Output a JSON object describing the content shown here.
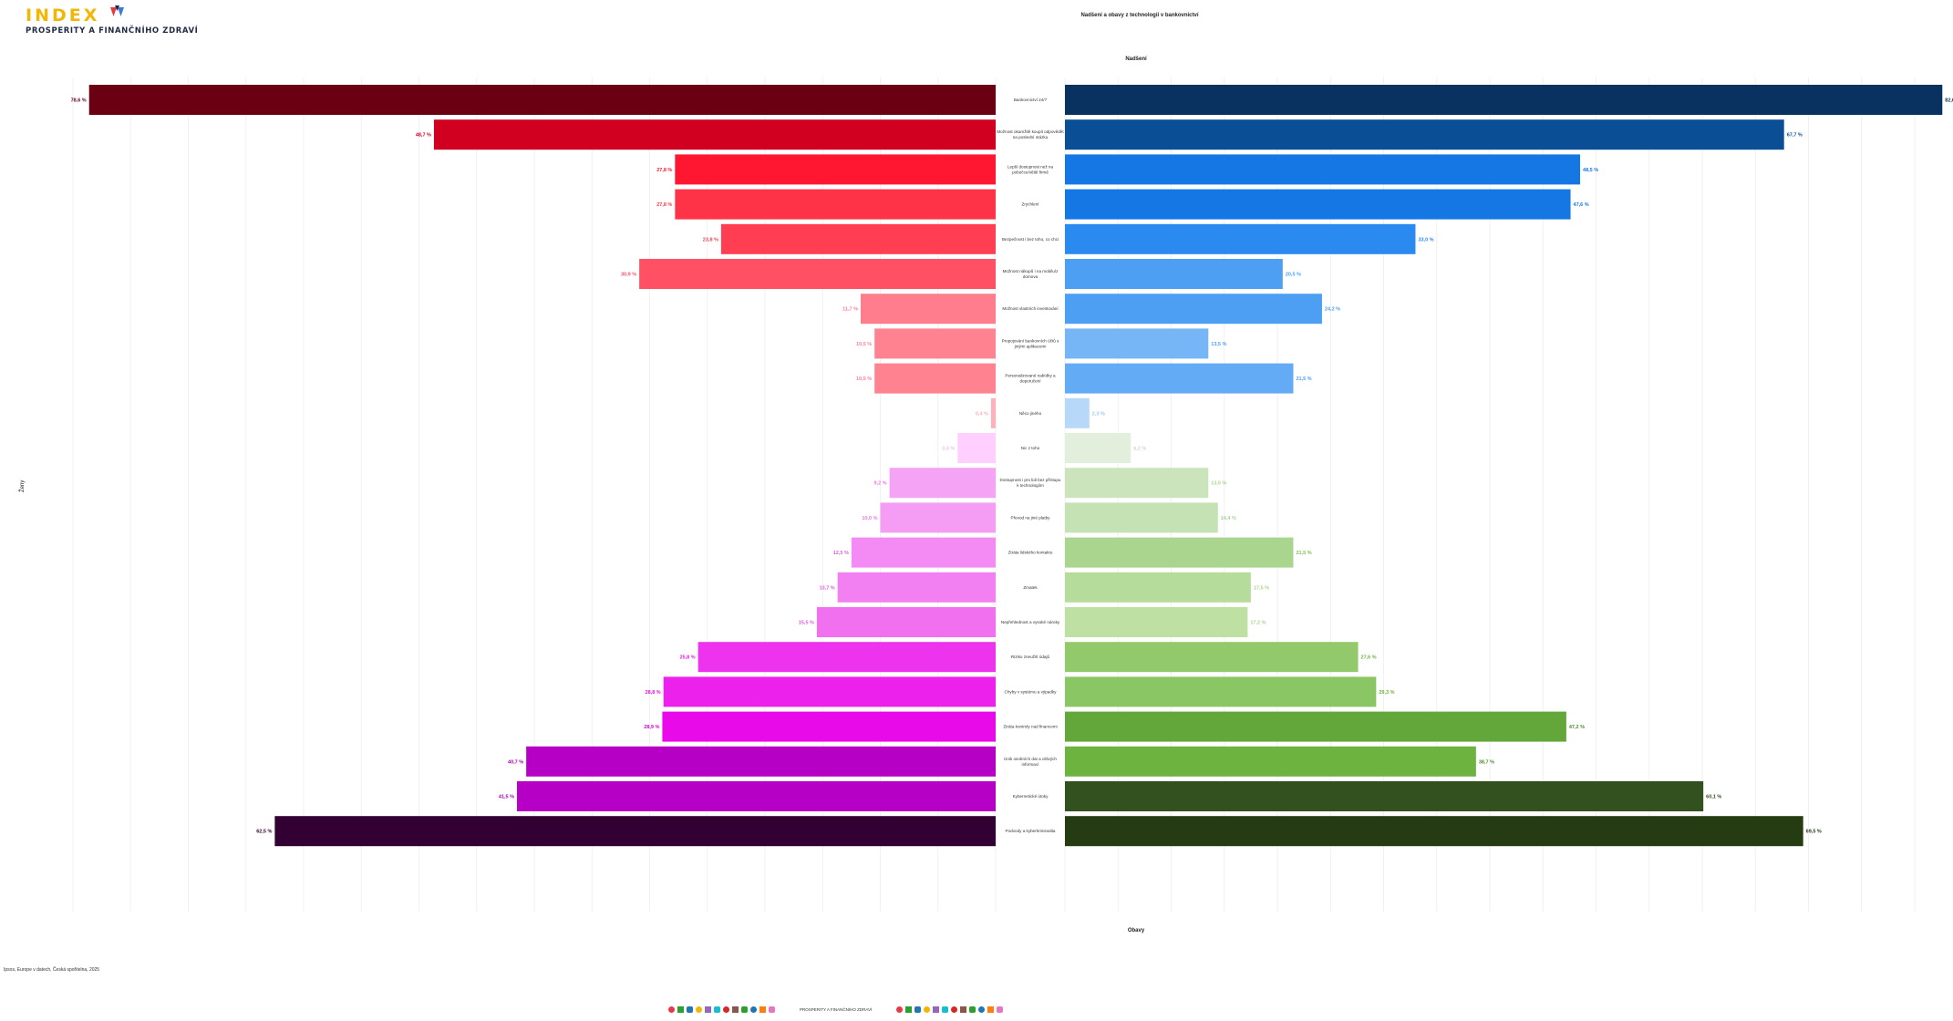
{
  "header": {
    "logo_word": "INDEX",
    "logo_subtitle": "PROSPERITY A FINANČNÍHO ZDRAVÍ",
    "brand_colors": {
      "yellow": "#f2b705",
      "navy": "#1f2a44",
      "red": "#e63946",
      "blue": "#3a7bd5"
    }
  },
  "footer": {
    "source": "Ipsos, Europe v datech, Česká spořitelna, 2025",
    "strip_text": "PROSPERITY A FINANČNÍHO ZDRAVÍ",
    "strip_colors": [
      "#e63946",
      "#2ca02c",
      "#1f77b4",
      "#f2b705",
      "#9467bd",
      "#17becf",
      "#d62728",
      "#8c564b",
      "#2ca02c",
      "#1f77b4",
      "#ff7f0e",
      "#e377c2",
      "#e63946",
      "#2ca02c",
      "#1f77b4",
      "#f2b705",
      "#9467bd",
      "#17becf",
      "#d62728",
      "#8c564b",
      "#2ca02c",
      "#1f77b4",
      "#ff7f0e",
      "#e377c2"
    ]
  },
  "chart_data": {
    "type": "bar",
    "title": "Nadšení a obavy z technologií v bankovnictví",
    "left_label": "Ženy",
    "top_label": "Nadšení",
    "bottom_label": "Obavy",
    "left_scale_max": 80,
    "right_scale_max": 80,
    "grid": true,
    "categories": [
      "Bankovnictví 24/7",
      "Možnost okamžitě koupit odpovědět na poslední otázku",
      "Lepší dostupnost než na pobočce/větší firmě",
      "Zrychlení",
      "Bezpečnost i bez toho, co chci",
      "Možnost nákupů i na mobilu/z domova",
      "Možnost vlastních investování",
      "Propojování bankovních účtů s jinými aplikacemi",
      "Personalizované nabídky a doporučení",
      "Něco jiného",
      "Nic z toho",
      "Dostupnost i pro lidi bez přístupu k technologiím",
      "Převod na jiné platby",
      "Ztráta lidského kontaktu",
      "Zmatek",
      "Nepřehlednost a vysoké nároky",
      "Riziko zneužití údajů",
      "Chyby v systému a výpadky",
      "Ztráta kontroly nad financemi",
      "Únik osobních dat a citlivých informací",
      "Kybernetické útoky",
      "Podvody a kyberkriminalita"
    ],
    "left_values": [
      78.6,
      48.7,
      27.8,
      27.8,
      23.8,
      30.9,
      11.7,
      10.5,
      10.5,
      0.4,
      3.3,
      9.2,
      10.0,
      12.5,
      13.7,
      15.5,
      25.8,
      28.8,
      28.9,
      40.7,
      41.5,
      62.5
    ],
    "right_values": [
      82.6,
      67.7,
      48.5,
      47.6,
      33.0,
      20.5,
      24.2,
      13.5,
      21.5,
      2.3,
      6.2,
      13.5,
      14.4,
      21.5,
      17.5,
      17.2,
      27.6,
      29.3,
      47.2,
      38.7,
      60.1,
      69.5
    ],
    "left_labels": [
      "78,6 %",
      "48,7 %",
      "27,8 %",
      "27,8 %",
      "23,8 %",
      "30,9 %",
      "11,7 %",
      "10,5 %",
      "10,5 %",
      "0,4 %",
      "3,3 %",
      "9,2 %",
      "10,0 %",
      "12,5 %",
      "13,7 %",
      "15,5 %",
      "25,8 %",
      "28,8 %",
      "28,9 %",
      "40,7 %",
      "41,5 %",
      "62,5 %"
    ],
    "right_labels": [
      "82,6 %",
      "67,7 %",
      "48,5 %",
      "47,6 %",
      "33,0 %",
      "20,5 %",
      "24,2 %",
      "13,5 %",
      "21,5 %",
      "2,3 %",
      "6,2 %",
      "13,5 %",
      "14,4 %",
      "21,5 %",
      "17,5 %",
      "17,2 %",
      "27,6 %",
      "29,3 %",
      "47,2 %",
      "38,7 %",
      "60,1 %",
      "69,5 %"
    ],
    "left_colors": [
      "#6a0012",
      "#d10020",
      "#ff1731",
      "#ff3347",
      "#ff3e52",
      "#ff5064",
      "#ff7d8c",
      "#ff8290",
      "#ff8290",
      "#ffb0ba",
      "#ffd0ff",
      "#f5a3f5",
      "#f59cf5",
      "#f48af4",
      "#f280f2",
      "#f070f0",
      "#ee33ee",
      "#ec22ec",
      "#e80ae8",
      "#b600c6",
      "#b600c6",
      "#320032"
    ],
    "right_colors": [
      "#0a3260",
      "#0a4e96",
      "#1577e4",
      "#1577e4",
      "#2a8aef",
      "#4c9ff2",
      "#4c9ff2",
      "#76b6f7",
      "#63abf5",
      "#b8d8f9",
      "#e2efdc",
      "#cbe4bc",
      "#c5e2b5",
      "#a9d58e",
      "#b5dc9a",
      "#bee0a3",
      "#92ca6b",
      "#8ac764",
      "#63a63a",
      "#6cb340",
      "#33501f",
      "#253c12"
    ],
    "left_label_colors": [
      "#6a0012",
      "#d10020",
      "#ff1731",
      "#ff3347",
      "#ff3e52",
      "#ff5064",
      "#ff7d8c",
      "#ff8290",
      "#ff8290",
      "#ffb0ba",
      "#f0c0f0",
      "#e87ae8",
      "#e87ae8",
      "#e05ce0",
      "#e05ce0",
      "#e05ce0",
      "#e020e0",
      "#e010e0",
      "#d000d0",
      "#a000b0",
      "#a000b0",
      "#320032"
    ],
    "right_label_colors": [
      "#0a3260",
      "#0a4e96",
      "#1577e4",
      "#1577e4",
      "#2a8aef",
      "#4c9ff2",
      "#4c9ff2",
      "#4c9ff2",
      "#4c9ff2",
      "#a0c8f0",
      "#c8e0c0",
      "#a9d58e",
      "#a9d58e",
      "#7fbf55",
      "#a9d58e",
      "#a9d58e",
      "#6cb340",
      "#6cb340",
      "#4f8a2c",
      "#4f8a2c",
      "#33501f",
      "#253c12"
    ]
  }
}
